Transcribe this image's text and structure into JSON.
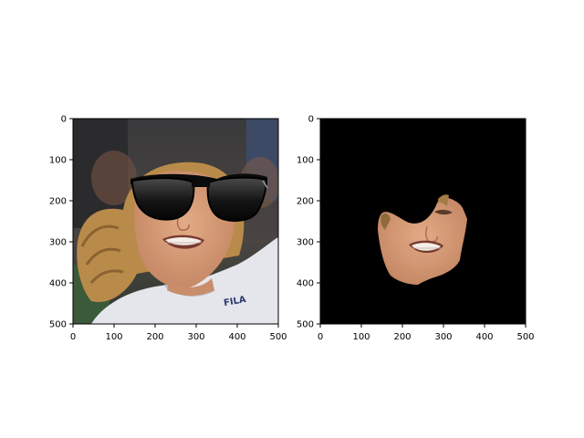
{
  "figure": {
    "background": "#ffffff"
  },
  "chart_data": [
    {
      "type": "image",
      "title": "",
      "xlabel": "",
      "ylabel": "",
      "xlim": [
        0,
        500
      ],
      "ylim": [
        500,
        0
      ],
      "xticks": [
        "0",
        "100",
        "200",
        "300",
        "400",
        "500"
      ],
      "yticks": [
        "0",
        "100",
        "200",
        "300",
        "400",
        "500"
      ],
      "grid": false,
      "content": "photo-face-with-sunglasses-overlay",
      "colors": {
        "background_dark": "#2f3134",
        "background_green": "#3b5a3a",
        "hair": "#b98b4a",
        "skin": "#d9a07a",
        "shirt": "#e4e6ec",
        "glasses": "#0b0b0b",
        "shirt_logo": "#2c3b6c"
      },
      "overlay_text": {
        "shirt_logo": "FILA"
      }
    },
    {
      "type": "image",
      "title": "",
      "xlabel": "",
      "ylabel": "",
      "xlim": [
        0,
        500
      ],
      "ylim": [
        500,
        0
      ],
      "xticks": [
        "0",
        "100",
        "200",
        "300",
        "400",
        "500"
      ],
      "yticks": [
        "0",
        "100",
        "200",
        "300",
        "400",
        "500"
      ],
      "grid": false,
      "content": "masked-face-region-on-black",
      "colors": {
        "background": "#000000",
        "skin": "#d7a07c",
        "hair": "#a47a45"
      }
    }
  ]
}
